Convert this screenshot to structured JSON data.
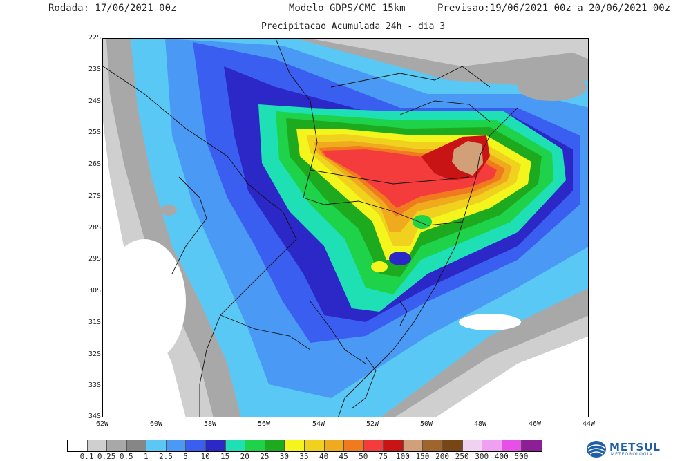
{
  "header": {
    "left": "Rodada: 17/06/2021 00z",
    "center": "Modelo GDPS/CMC 15km",
    "right": "Previsao:19/06/2021 00z a 20/06/2021 00z"
  },
  "subtitle": "Precipitacao Acumulada 24h - dia 3",
  "axes": {
    "lat_labels": [
      "22S",
      "23S",
      "24S",
      "25S",
      "26S",
      "27S",
      "28S",
      "29S",
      "30S",
      "31S",
      "32S",
      "33S",
      "34S"
    ],
    "lon_labels": [
      "62W",
      "60W",
      "58W",
      "56W",
      "54W",
      "52W",
      "50W",
      "48W",
      "46W",
      "44W"
    ],
    "lat_range": [
      -34,
      -22
    ],
    "lon_range": [
      -62,
      -44
    ]
  },
  "legend": {
    "labels": [
      "0.1",
      "0.25",
      "0.5",
      "1",
      "2.5",
      "5",
      "10",
      "15",
      "20",
      "25",
      "30",
      "35",
      "40",
      "45",
      "50",
      "75",
      "100",
      "150",
      "200",
      "250",
      "300",
      "400",
      "500"
    ],
    "colors": [
      "#ffffff",
      "#cfcfcf",
      "#a8a8a8",
      "#868686",
      "#5ac8f5",
      "#4a9af5",
      "#3a5ef0",
      "#2c28c8",
      "#1ee0b4",
      "#1ed24a",
      "#1eaa1e",
      "#f5f51e",
      "#f0d21e",
      "#f0aa1e",
      "#f07a1e",
      "#f53c3c",
      "#c81414",
      "#d2a078",
      "#a0642d",
      "#784614",
      "#f0d2f0",
      "#f0a0f0",
      "#e650e6",
      "#8c1e96"
    ]
  },
  "logo": {
    "name": "METSUL",
    "sub": "METEOROLOGIA",
    "icon": "globe-icon"
  }
}
